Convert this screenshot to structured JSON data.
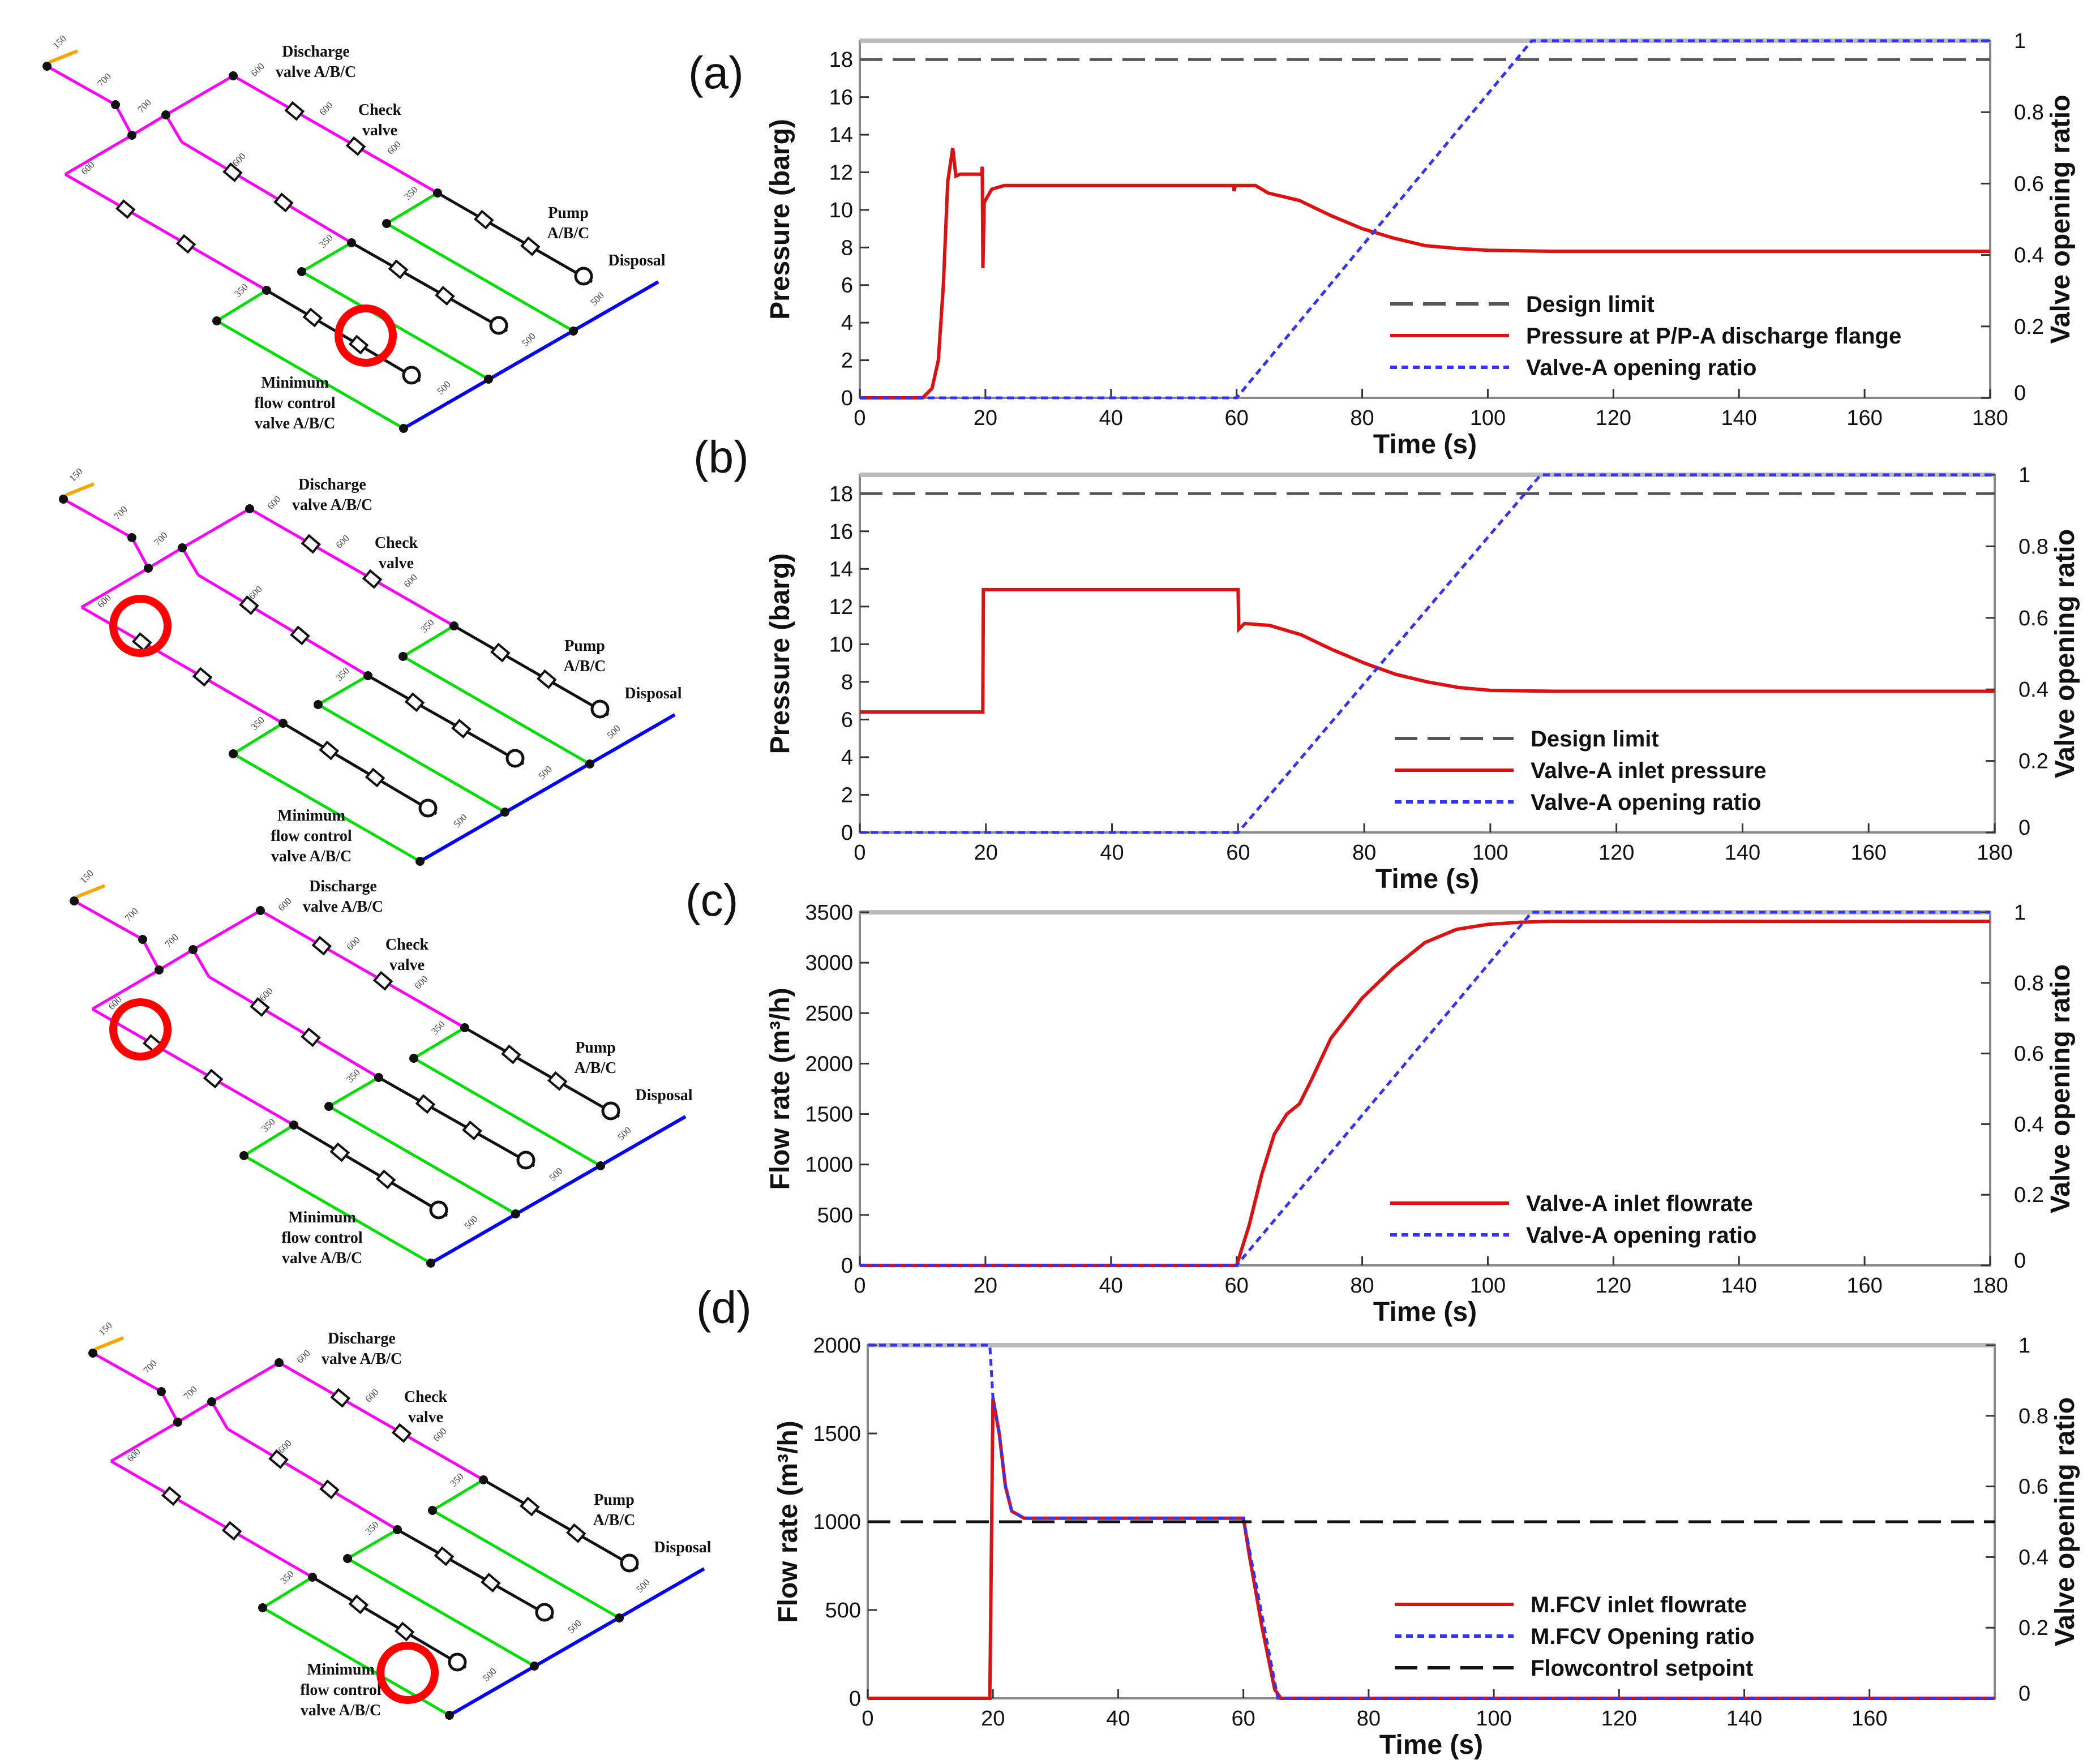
{
  "panels": [
    {
      "label": "(a)"
    },
    {
      "label": "(b)"
    },
    {
      "label": "(c)"
    },
    {
      "label": "(d)"
    }
  ],
  "diagram": {
    "discharge_label_1": "Discharge",
    "discharge_label_2": "valve A/B/C",
    "check_label_1": "Check",
    "check_label_2": "valve",
    "pump_label_1": "Pump",
    "pump_label_2": "A/B/C",
    "disposal_label": "Disposal",
    "mfcv_label_1": "Minimum",
    "mfcv_label_2": "flow control",
    "mfcv_label_3": "valve A/B/C",
    "pipe_sizes": [
      "150",
      "700",
      "700",
      "600",
      "600",
      "600",
      "600",
      "600",
      "350",
      "350",
      "350",
      "500",
      "500",
      "500"
    ],
    "colors": {
      "header": "#ff00ff",
      "minflow": "#00dd00",
      "disposal": "#0000ff",
      "inlet": "#ffa500",
      "highlight": "#ff0000"
    }
  },
  "chart_data": [
    {
      "type": "line",
      "xlabel": "Time (s)",
      "ylabel": "Pressure (barg)",
      "y2label": "Valve opening ratio",
      "xlim": [
        0,
        180
      ],
      "ylim": [
        0,
        19
      ],
      "y2lim": [
        0,
        1
      ],
      "xticks": [
        0,
        20,
        40,
        60,
        80,
        100,
        120,
        140,
        160,
        180
      ],
      "yticks": [
        0,
        2,
        4,
        6,
        8,
        10,
        12,
        14,
        16,
        18
      ],
      "y2ticks": [
        0,
        0.2,
        0.4,
        0.6,
        0.8,
        1
      ],
      "legend_position": "bottom-right",
      "series": [
        {
          "name": "Design limit",
          "axis": "left",
          "style": "longdash",
          "color": "#555555",
          "points": [
            [
              0,
              18
            ],
            [
              180,
              18
            ]
          ]
        },
        {
          "name": "Pressure at P/P-A discharge flange",
          "axis": "left",
          "style": "solid",
          "color": "#dd1111",
          "points": [
            [
              0,
              0
            ],
            [
              10,
              0
            ],
            [
              11.5,
              0.5
            ],
            [
              12.5,
              2
            ],
            [
              13.3,
              6
            ],
            [
              14,
              11.5
            ],
            [
              14.8,
              13.3
            ],
            [
              15.3,
              11.8
            ],
            [
              16,
              11.9
            ],
            [
              19.4,
              11.9
            ],
            [
              19.5,
              12.3
            ],
            [
              19.6,
              6.9
            ],
            [
              19.8,
              10.4
            ],
            [
              21,
              11.1
            ],
            [
              23,
              11.3
            ],
            [
              59.5,
              11.3
            ],
            [
              59.6,
              11.0
            ],
            [
              59.8,
              11.3
            ],
            [
              63,
              11.3
            ],
            [
              65,
              10.9
            ],
            [
              70,
              10.5
            ],
            [
              75,
              9.7
            ],
            [
              80,
              9.0
            ],
            [
              85,
              8.5
            ],
            [
              90,
              8.1
            ],
            [
              95,
              7.95
            ],
            [
              100,
              7.85
            ],
            [
              110,
              7.8
            ],
            [
              180,
              7.8
            ]
          ]
        },
        {
          "name": "Valve-A opening ratio",
          "axis": "right",
          "style": "dotted",
          "color": "#3333ff",
          "points": [
            [
              0,
              0
            ],
            [
              60,
              0
            ],
            [
              107,
              1
            ],
            [
              180,
              1
            ]
          ]
        }
      ]
    },
    {
      "type": "line",
      "xlabel": "Time (s)",
      "ylabel": "Pressure (barg)",
      "y2label": "Valve opening ratio",
      "xlim": [
        0,
        180
      ],
      "ylim": [
        0,
        19
      ],
      "y2lim": [
        0,
        1
      ],
      "xticks": [
        0,
        20,
        40,
        60,
        80,
        100,
        120,
        140,
        160,
        180
      ],
      "yticks": [
        0,
        2,
        4,
        6,
        8,
        10,
        12,
        14,
        16,
        18
      ],
      "y2ticks": [
        0,
        0.2,
        0.4,
        0.6,
        0.8,
        1
      ],
      "legend_position": "bottom-right",
      "series": [
        {
          "name": "Design limit",
          "axis": "left",
          "style": "longdash",
          "color": "#555555",
          "points": [
            [
              0,
              18
            ],
            [
              180,
              18
            ]
          ]
        },
        {
          "name": "Valve-A inlet pressure",
          "axis": "left",
          "style": "solid",
          "color": "#dd1111",
          "points": [
            [
              0,
              6.4
            ],
            [
              19.5,
              6.4
            ],
            [
              19.6,
              12.9
            ],
            [
              60,
              12.9
            ],
            [
              60.1,
              10.8
            ],
            [
              61,
              11.1
            ],
            [
              65,
              11.0
            ],
            [
              70,
              10.5
            ],
            [
              75,
              9.7
            ],
            [
              80,
              9.0
            ],
            [
              85,
              8.4
            ],
            [
              90,
              8.0
            ],
            [
              95,
              7.7
            ],
            [
              100,
              7.55
            ],
            [
              110,
              7.5
            ],
            [
              180,
              7.5
            ]
          ]
        },
        {
          "name": "Valve-A opening ratio",
          "axis": "right",
          "style": "dotted",
          "color": "#3333ff",
          "points": [
            [
              0,
              0
            ],
            [
              60,
              0
            ],
            [
              108,
              1
            ],
            [
              180,
              1
            ]
          ]
        }
      ]
    },
    {
      "type": "line",
      "xlabel": "Time (s)",
      "ylabel": "Flow rate (m³/h)",
      "y2label": "Valve opening ratio",
      "xlim": [
        0,
        180
      ],
      "ylim": [
        0,
        3500
      ],
      "y2lim": [
        0,
        1
      ],
      "xticks": [
        0,
        20,
        40,
        60,
        80,
        100,
        120,
        140,
        160,
        180
      ],
      "yticks": [
        0,
        500,
        1000,
        1500,
        2000,
        2500,
        3000,
        3500
      ],
      "y2ticks": [
        0,
        0.2,
        0.4,
        0.6,
        0.8,
        1
      ],
      "legend_position": "bottom-right",
      "series": [
        {
          "name": "Valve-A inlet flowrate",
          "axis": "left",
          "style": "solid",
          "color": "#dd1111",
          "points": [
            [
              0,
              0
            ],
            [
              60,
              0
            ],
            [
              62,
              400
            ],
            [
              64,
              900
            ],
            [
              66,
              1300
            ],
            [
              68,
              1500
            ],
            [
              70,
              1600
            ],
            [
              72,
              1850
            ],
            [
              75,
              2250
            ],
            [
              80,
              2650
            ],
            [
              85,
              2950
            ],
            [
              90,
              3200
            ],
            [
              95,
              3330
            ],
            [
              100,
              3380
            ],
            [
              105,
              3400
            ],
            [
              110,
              3410
            ],
            [
              180,
              3410
            ]
          ]
        },
        {
          "name": "Valve-A opening ratio",
          "axis": "right",
          "style": "dotted",
          "color": "#3333ff",
          "points": [
            [
              0,
              0
            ],
            [
              60,
              0
            ],
            [
              107,
              1
            ],
            [
              180,
              1
            ]
          ]
        }
      ]
    },
    {
      "type": "line",
      "xlabel": "Time (s)",
      "ylabel": "Flow rate (m³/h)",
      "y2label": "Valve opening ratio",
      "xlim": [
        0,
        180
      ],
      "ylim": [
        0,
        2000
      ],
      "y2lim": [
        0,
        1
      ],
      "xticks": [
        0,
        20,
        40,
        60,
        80,
        100,
        120,
        140,
        160
      ],
      "yticks": [
        0,
        500,
        1000,
        1500,
        2000
      ],
      "y2ticks": [
        0,
        0.2,
        0.4,
        0.6,
        0.8,
        1
      ],
      "legend_position": "bottom-right",
      "series": [
        {
          "name": "M.FCV inlet flowrate",
          "axis": "left",
          "style": "solid",
          "color": "#dd1111",
          "points": [
            [
              0,
              0
            ],
            [
              19.5,
              0
            ],
            [
              20,
              1700
            ],
            [
              21,
              1500
            ],
            [
              22,
              1200
            ],
            [
              23,
              1060
            ],
            [
              25,
              1020
            ],
            [
              60,
              1020
            ],
            [
              61,
              800
            ],
            [
              63,
              400
            ],
            [
              65,
              50
            ],
            [
              66,
              0
            ],
            [
              180,
              0
            ]
          ]
        },
        {
          "name": "M.FCV Opening ratio",
          "axis": "right",
          "style": "dotted",
          "color": "#3333ff",
          "points": [
            [
              0,
              1
            ],
            [
              19.5,
              1
            ],
            [
              20,
              0.85
            ],
            [
              21,
              0.75
            ],
            [
              22,
              0.6
            ],
            [
              23,
              0.53
            ],
            [
              25,
              0.51
            ],
            [
              60,
              0.51
            ],
            [
              65.5,
              0
            ],
            [
              180,
              0
            ]
          ]
        },
        {
          "name": "Flowcontrol setpoint",
          "axis": "left",
          "style": "longdash",
          "color": "#111111",
          "points": [
            [
              0,
              1000
            ],
            [
              180,
              1000
            ]
          ]
        }
      ]
    }
  ]
}
